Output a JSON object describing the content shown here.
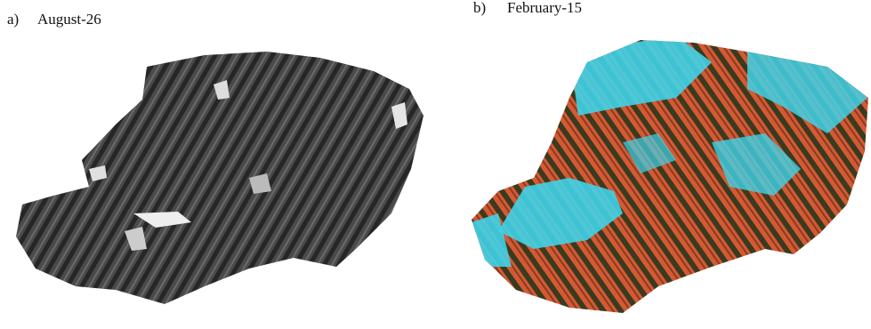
{
  "panels": [
    {
      "label": "a)",
      "title": "August-26"
    },
    {
      "label": "b)",
      "title": "February-15"
    }
  ]
}
